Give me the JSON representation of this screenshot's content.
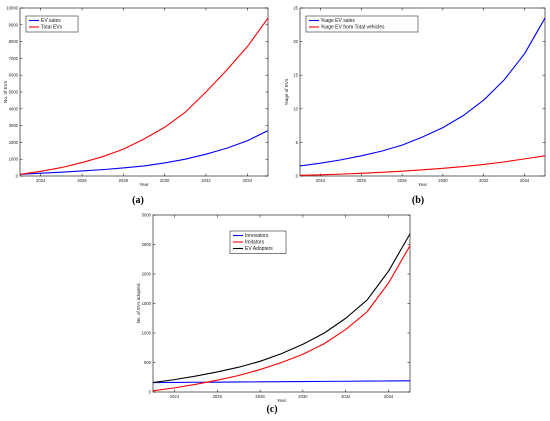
{
  "chart_data": [
    {
      "id": "a",
      "type": "line",
      "caption": "(a)",
      "xlabel": "Year",
      "ylabel": "No. of EVs",
      "xlim": [
        2023,
        2035
      ],
      "ylim": [
        0,
        10000
      ],
      "xticks": [
        2024,
        2026,
        2028,
        2030,
        2032,
        2034
      ],
      "yticks": [
        0,
        1000,
        2000,
        3000,
        4000,
        5000,
        6000,
        7000,
        8000,
        9000,
        10000
      ],
      "legend_position": "top-left",
      "x": [
        2023,
        2024,
        2025,
        2026,
        2027,
        2028,
        2029,
        2030,
        2031,
        2032,
        2033,
        2034,
        2035
      ],
      "series": [
        {
          "name": "EV sales",
          "color": "#0000ff",
          "values": [
            100,
            170,
            230,
            300,
            380,
            480,
            600,
            780,
            1000,
            1300,
            1650,
            2100,
            2700
          ]
        },
        {
          "name": "Total EVs",
          "color": "#ff0000",
          "values": [
            100,
            280,
            500,
            800,
            1150,
            1600,
            2200,
            2900,
            3800,
            5000,
            6300,
            7700,
            9400
          ]
        }
      ]
    },
    {
      "id": "b",
      "type": "line",
      "caption": "(b)",
      "xlabel": "Year",
      "ylabel": "%age of EVs",
      "xlim": [
        2023,
        2035
      ],
      "ylim": [
        0,
        25
      ],
      "xticks": [
        2024,
        2026,
        2028,
        2030,
        2032,
        2034
      ],
      "yticks": [
        0,
        5,
        10,
        15,
        20,
        25
      ],
      "legend_position": "top-left",
      "x": [
        2023,
        2024,
        2025,
        2026,
        2027,
        2028,
        2029,
        2030,
        2031,
        2032,
        2033,
        2034,
        2035
      ],
      "series": [
        {
          "name": "%age EV sales",
          "color": "#0000ff",
          "values": [
            1.5,
            1.9,
            2.4,
            3.0,
            3.7,
            4.6,
            5.8,
            7.2,
            9.0,
            11.3,
            14.3,
            18.2,
            23.5
          ]
        },
        {
          "name": "%age EV from Total vehicles",
          "color": "#ff0000",
          "values": [
            0.1,
            0.18,
            0.28,
            0.4,
            0.55,
            0.72,
            0.92,
            1.15,
            1.4,
            1.72,
            2.1,
            2.55,
            3.0
          ]
        }
      ]
    },
    {
      "id": "c",
      "type": "line",
      "caption": "(c)",
      "xlabel": "Year",
      "ylabel": "No. of EVs adopted",
      "xlim": [
        2023,
        2035
      ],
      "ylim": [
        0,
        3000
      ],
      "xticks": [
        2024,
        2026,
        2028,
        2030,
        2032,
        2034
      ],
      "yticks": [
        0,
        500,
        1000,
        1500,
        2000,
        2500,
        3000
      ],
      "legend_position": "top-center",
      "x": [
        2023,
        2024,
        2025,
        2026,
        2027,
        2028,
        2029,
        2030,
        2031,
        2032,
        2033,
        2034,
        2035
      ],
      "series": [
        {
          "name": "Innovators",
          "color": "#0000ff",
          "values": [
            160,
            162,
            165,
            167,
            170,
            172,
            175,
            177,
            180,
            182,
            185,
            187,
            190
          ]
        },
        {
          "name": "Imitators",
          "color": "#ff0000",
          "values": [
            20,
            70,
            130,
            200,
            280,
            380,
            500,
            640,
            820,
            1060,
            1360,
            1850,
            2480
          ]
        },
        {
          "name": "EV Adopters",
          "color": "#000000",
          "values": [
            160,
            210,
            270,
            340,
            420,
            520,
            650,
            810,
            1000,
            1250,
            1560,
            2050,
            2680
          ]
        }
      ]
    }
  ]
}
